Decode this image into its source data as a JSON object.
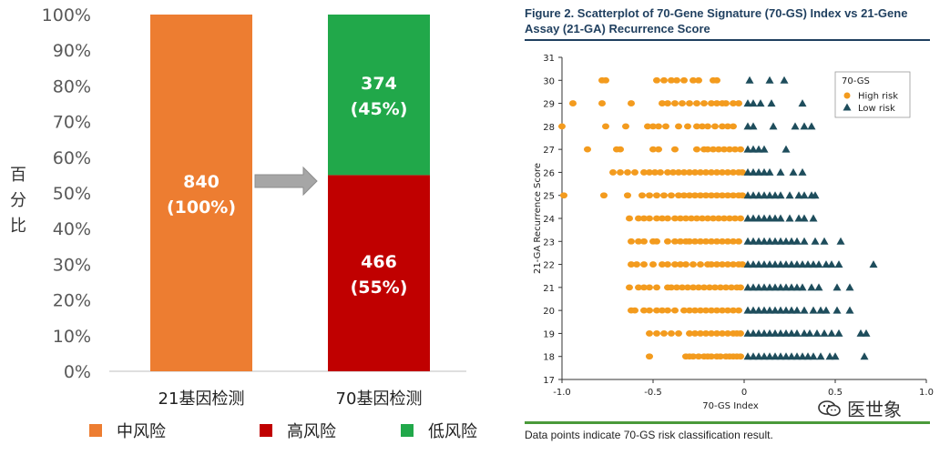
{
  "left_chart": {
    "ylabel": "百分比",
    "yticks": [
      "0%",
      "10%",
      "20%",
      "30%",
      "40%",
      "50%",
      "60%",
      "70%",
      "80%",
      "90%",
      "100%"
    ],
    "legend": [
      {
        "label": "中风险",
        "color": "#ED7D31"
      },
      {
        "label": "高风险",
        "color": "#C00000"
      },
      {
        "label": "低风险",
        "color": "#21A84A"
      }
    ]
  },
  "right_chart": {
    "title": "Figure 2. Scatterplot of 70-Gene Signature (70-GS) Index vs 21-Gene Assay (21-GA) Recurrence Score",
    "xlabel": "70-GS Index",
    "ylabel": "21-GA Recurrence Score",
    "legend_title": "70-GS",
    "footer": "Data points indicate 70-GS risk classification result."
  },
  "watermark": "医世象",
  "chart_data": [
    {
      "type": "bar",
      "stacked": true,
      "categories": [
        "21基因检测",
        "70基因检测"
      ],
      "series": [
        {
          "name": "中风险",
          "color": "#ED7D31",
          "percents": [
            100,
            0
          ],
          "labels": [
            "840\n(100%)",
            ""
          ]
        },
        {
          "name": "高风险",
          "color": "#C00000",
          "percents": [
            0,
            55
          ],
          "labels": [
            "",
            "466\n(55%)"
          ]
        },
        {
          "name": "低风险",
          "color": "#21A84A",
          "percents": [
            0,
            45
          ],
          "labels": [
            "",
            "374\n(45%)"
          ]
        }
      ],
      "ylim": [
        0,
        100
      ],
      "ylabel": "百分比",
      "grid": false,
      "legend": "bottom",
      "annotation": "arrow from 21基因检测 to 70基因检测"
    },
    {
      "type": "scatter",
      "title": "Figure 2. Scatterplot of 70-Gene Signature (70-GS) Index vs 21-Gene Assay (21-GA) Recurrence Score",
      "xlabel": "70-GS Index",
      "ylabel": "21-GA Recurrence Score",
      "xlim": [
        -1.0,
        1.0
      ],
      "ylim": [
        17,
        31
      ],
      "xticks": [
        -1.0,
        -0.5,
        0,
        0.5,
        1.0
      ],
      "yticks": [
        17,
        18,
        19,
        20,
        21,
        22,
        23,
        24,
        25,
        26,
        27,
        28,
        29,
        30,
        31
      ],
      "legend_title": "70-GS",
      "legend": "top-right",
      "series": [
        {
          "name": "High risk",
          "marker": "circle",
          "color": "#F39B1E",
          "points_by_score": {
            "18": [
              -0.52,
              -0.32,
              -0.3,
              -0.28,
              -0.25,
              -0.22,
              -0.2,
              -0.18,
              -0.15,
              -0.13,
              -0.1,
              -0.08,
              -0.06,
              -0.04,
              -0.02
            ],
            "19": [
              -0.52,
              -0.48,
              -0.44,
              -0.4,
              -0.36,
              -0.3,
              -0.27,
              -0.24,
              -0.21,
              -0.18,
              -0.15,
              -0.12,
              -0.09,
              -0.06,
              -0.04,
              -0.02
            ],
            "20": [
              -0.62,
              -0.6,
              -0.55,
              -0.52,
              -0.48,
              -0.45,
              -0.42,
              -0.38,
              -0.33,
              -0.3,
              -0.27,
              -0.24,
              -0.21,
              -0.18,
              -0.15,
              -0.12,
              -0.09,
              -0.06,
              -0.03
            ],
            "21": [
              -0.63,
              -0.58,
              -0.55,
              -0.52,
              -0.48,
              -0.42,
              -0.4,
              -0.37,
              -0.34,
              -0.31,
              -0.28,
              -0.25,
              -0.22,
              -0.19,
              -0.16,
              -0.13,
              -0.1,
              -0.07,
              -0.04,
              -0.02
            ],
            "22": [
              -0.62,
              -0.59,
              -0.55,
              -0.5,
              -0.45,
              -0.42,
              -0.38,
              -0.35,
              -0.32,
              -0.28,
              -0.24,
              -0.2,
              -0.18,
              -0.15,
              -0.12,
              -0.09,
              -0.06,
              -0.03,
              -0.01
            ],
            "23": [
              -0.62,
              -0.58,
              -0.55,
              -0.5,
              -0.48,
              -0.42,
              -0.38,
              -0.35,
              -0.32,
              -0.3,
              -0.27,
              -0.24,
              -0.21,
              -0.18,
              -0.15,
              -0.12,
              -0.09,
              -0.06,
              -0.03
            ],
            "24": [
              -0.63,
              -0.58,
              -0.55,
              -0.52,
              -0.48,
              -0.45,
              -0.42,
              -0.38,
              -0.35,
              -0.32,
              -0.29,
              -0.26,
              -0.23,
              -0.2,
              -0.17,
              -0.14,
              -0.11,
              -0.08,
              -0.05,
              -0.02
            ],
            "25": [
              -0.99,
              -0.77,
              -0.64,
              -0.56,
              -0.52,
              -0.48,
              -0.44,
              -0.4,
              -0.36,
              -0.33,
              -0.3,
              -0.27,
              -0.24,
              -0.21,
              -0.18,
              -0.15,
              -0.12,
              -0.09,
              -0.06,
              -0.03,
              -0.01
            ],
            "26": [
              -0.72,
              -0.68,
              -0.64,
              -0.6,
              -0.55,
              -0.52,
              -0.49,
              -0.46,
              -0.42,
              -0.39,
              -0.36,
              -0.33,
              -0.3,
              -0.27,
              -0.24,
              -0.21,
              -0.18,
              -0.15,
              -0.12,
              -0.09,
              -0.06,
              -0.03,
              -0.01
            ],
            "27": [
              -0.86,
              -0.7,
              -0.68,
              -0.5,
              -0.47,
              -0.38,
              -0.26,
              -0.22,
              -0.2,
              -0.17,
              -0.14,
              -0.11,
              -0.08,
              -0.05,
              -0.02
            ],
            "28": [
              -1.0,
              -0.76,
              -0.65,
              -0.53,
              -0.5,
              -0.47,
              -0.43,
              -0.36,
              -0.31,
              -0.26,
              -0.23,
              -0.2,
              -0.16,
              -0.12,
              -0.09,
              -0.06
            ],
            "29": [
              -0.94,
              -0.78,
              -0.62,
              -0.45,
              -0.42,
              -0.38,
              -0.34,
              -0.3,
              -0.26,
              -0.22,
              -0.18,
              -0.15,
              -0.12,
              -0.1,
              -0.06,
              -0.03
            ],
            "30": [
              -0.78,
              -0.76,
              -0.48,
              -0.44,
              -0.4,
              -0.37,
              -0.33,
              -0.28,
              -0.25,
              -0.17,
              -0.15
            ]
          }
        },
        {
          "name": "Low risk",
          "marker": "triangle",
          "color": "#1E4D5C",
          "points_by_score": {
            "18": [
              0.02,
              0.05,
              0.08,
              0.11,
              0.14,
              0.17,
              0.2,
              0.23,
              0.26,
              0.29,
              0.32,
              0.35,
              0.38,
              0.42,
              0.47,
              0.5,
              0.66
            ],
            "19": [
              0.02,
              0.05,
              0.08,
              0.11,
              0.14,
              0.17,
              0.2,
              0.23,
              0.26,
              0.29,
              0.33,
              0.36,
              0.4,
              0.44,
              0.48,
              0.52,
              0.64,
              0.67
            ],
            "20": [
              0.02,
              0.05,
              0.08,
              0.11,
              0.14,
              0.17,
              0.2,
              0.23,
              0.26,
              0.29,
              0.33,
              0.38,
              0.42,
              0.45,
              0.51,
              0.58
            ],
            "21": [
              0.02,
              0.05,
              0.08,
              0.11,
              0.14,
              0.17,
              0.2,
              0.23,
              0.26,
              0.29,
              0.32,
              0.37,
              0.41,
              0.51,
              0.58
            ],
            "22": [
              0.02,
              0.05,
              0.08,
              0.11,
              0.14,
              0.17,
              0.2,
              0.23,
              0.26,
              0.29,
              0.32,
              0.35,
              0.38,
              0.41,
              0.45,
              0.48,
              0.52,
              0.71
            ],
            "23": [
              0.02,
              0.05,
              0.08,
              0.11,
              0.14,
              0.17,
              0.2,
              0.23,
              0.26,
              0.29,
              0.33,
              0.39,
              0.44,
              0.53
            ],
            "24": [
              0.02,
              0.05,
              0.08,
              0.11,
              0.14,
              0.17,
              0.2,
              0.25,
              0.3,
              0.33,
              0.38
            ],
            "25": [
              0.02,
              0.05,
              0.08,
              0.11,
              0.14,
              0.17,
              0.2,
              0.25,
              0.3,
              0.33,
              0.37,
              0.39
            ],
            "26": [
              0.02,
              0.05,
              0.08,
              0.11,
              0.14,
              0.2,
              0.27,
              0.32
            ],
            "27": [
              0.02,
              0.05,
              0.08,
              0.11,
              0.23
            ],
            "28": [
              0.02,
              0.05,
              0.16,
              0.28,
              0.33,
              0.37
            ],
            "29": [
              0.02,
              0.05,
              0.09,
              0.15,
              0.32
            ],
            "30": [
              0.03,
              0.14,
              0.22
            ]
          }
        }
      ]
    }
  ]
}
